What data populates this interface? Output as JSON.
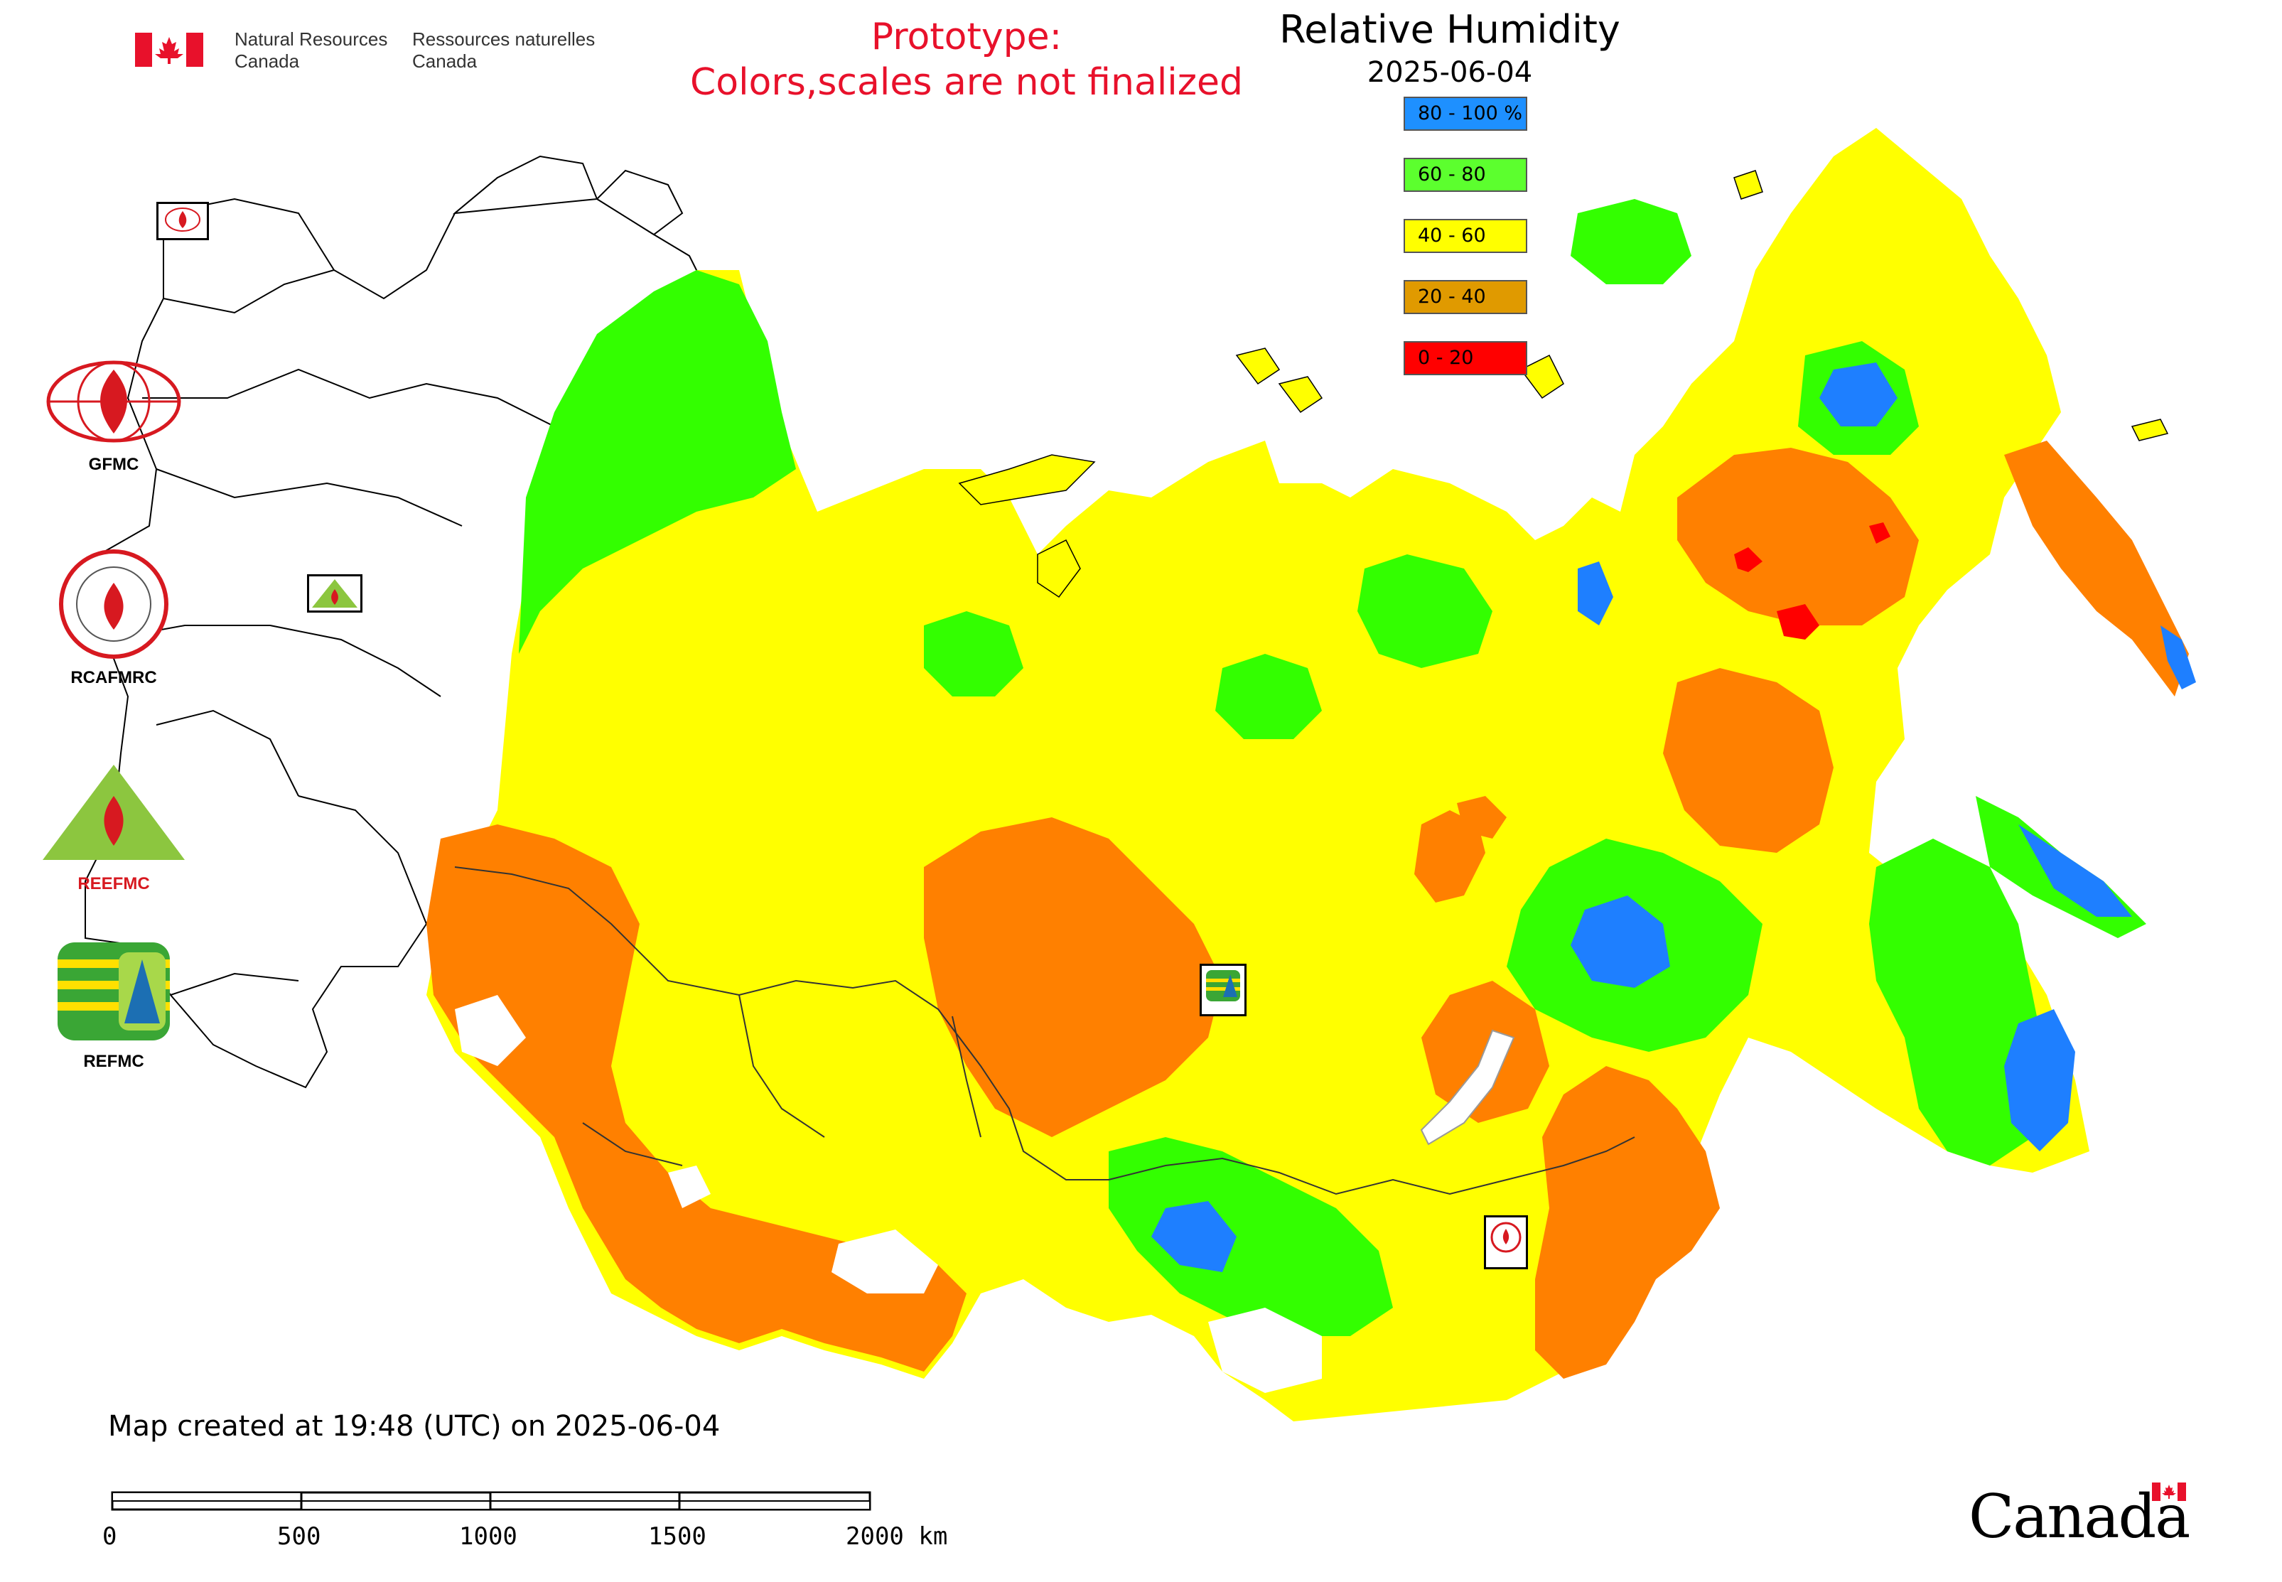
{
  "header": {
    "dept_en_line1": "Natural Resources",
    "dept_en_line2": "Canada",
    "dept_fr_line1": "Ressources naturelles",
    "dept_fr_line2": "Canada",
    "prototype_line1": "Prototype:",
    "prototype_line2": "Colors,scales are not finalized"
  },
  "map": {
    "title": "Relative Humidity",
    "date": "2025-06-04"
  },
  "legend": {
    "items": [
      {
        "label": "80 - 100 %",
        "color": "#1e90ff"
      },
      {
        "label": "60 - 80",
        "color": "#5cff2e"
      },
      {
        "label": "40 - 60",
        "color": "#ffff00"
      },
      {
        "label": "20 - 40",
        "color": "#e09a00"
      },
      {
        "label": "0 - 20",
        "color": "#ff0000"
      }
    ]
  },
  "agencies": {
    "gfmc": "GFMC",
    "rcafmrc": "RCAFMRC",
    "reefmc": "REEFMC",
    "refmc": "REFMC"
  },
  "footer": {
    "created": "Map created at 19:48 (UTC) on 2025-06-04"
  },
  "scalebar": {
    "ticks": [
      "0",
      "500",
      "1000",
      "1500",
      "2000 km"
    ]
  },
  "wordmark": "Canada",
  "colors": {
    "yellow": "#ffff00",
    "orange": "#ff8000",
    "green": "#33ff00",
    "blue": "#1e7fff",
    "red": "#ff0000",
    "prototype_red": "#e8112b"
  }
}
